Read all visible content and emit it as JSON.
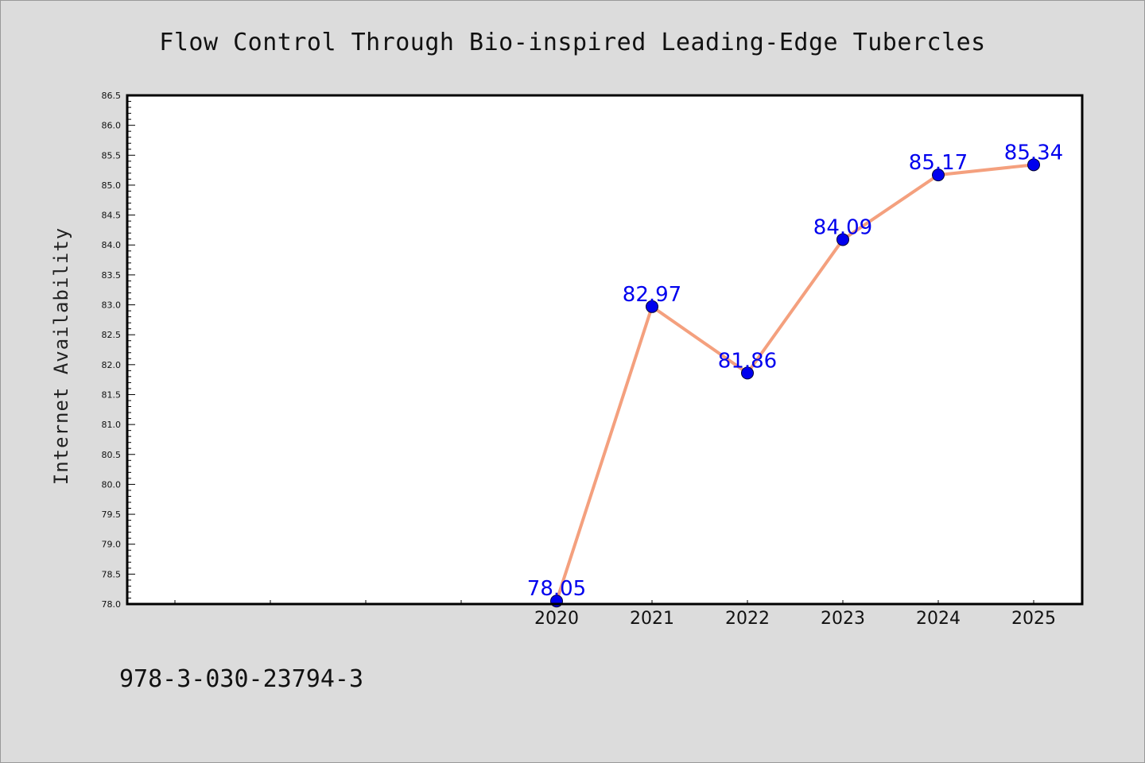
{
  "chart_data": {
    "type": "line",
    "title": "Flow Control Through Bio-inspired Leading-Edge Tubercles",
    "xlabel": "",
    "ylabel": "Internet Availability",
    "categories": [
      "2020",
      "2021",
      "2022",
      "2023",
      "2024",
      "2025"
    ],
    "series": [
      {
        "values": [
          78.05,
          82.97,
          81.86,
          84.09,
          85.17,
          85.34
        ]
      }
    ],
    "data_labels": [
      "78.05",
      "82.97",
      "81.86",
      "84.09",
      "85.17",
      "85.34"
    ],
    "ylim": [
      78.0,
      86.5
    ],
    "y_ticks": [
      "78.0",
      "78.5",
      "79.0",
      "79.5",
      "80.0",
      "80.5",
      "81.0",
      "81.5",
      "82.0",
      "82.5",
      "83.0",
      "83.5",
      "84.0",
      "84.5",
      "85.0",
      "85.5",
      "86.0",
      "86.5"
    ],
    "grid": false,
    "legend": "none",
    "colors": {
      "line": "#f4a07e",
      "marker": "#0000ee",
      "data_label": "#0000ee",
      "plot_background": "#ffffff",
      "page_background": "#dcdcdc"
    }
  },
  "footer": {
    "text": "978-3-030-23794-3"
  }
}
